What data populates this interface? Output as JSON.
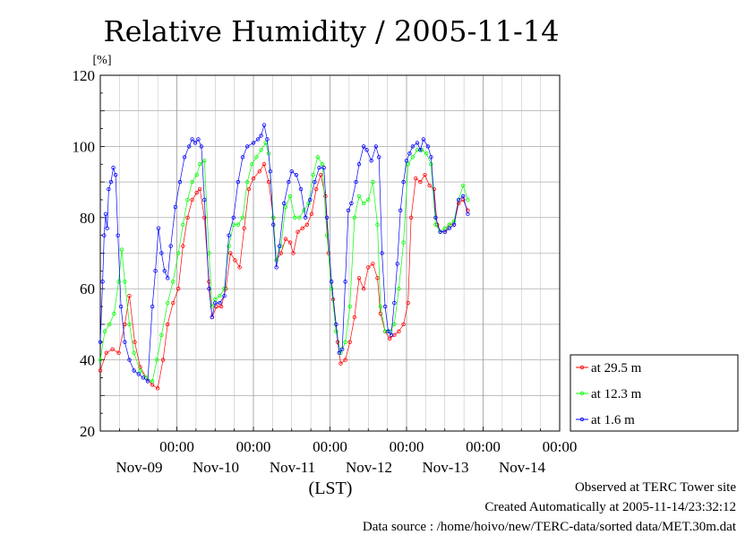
{
  "chart_data": {
    "type": "line",
    "title": "Relative Humidity / 2005-11-14",
    "ylabel": "[%]",
    "xlabel": "(LST)",
    "ylim": [
      20,
      120
    ],
    "yticks": [
      20,
      40,
      60,
      80,
      100,
      120
    ],
    "xlim_days": [
      -1,
      5
    ],
    "xticks": [
      {
        "top": "00:00",
        "bottom": "Nov-09"
      },
      {
        "top": "00:00",
        "bottom": "Nov-10"
      },
      {
        "top": "00:00",
        "bottom": "Nov-11"
      },
      {
        "top": "00:00",
        "bottom": "Nov-12"
      },
      {
        "top": "00:00",
        "bottom": "Nov-13"
      },
      {
        "top": "00:00",
        "bottom": "Nov-14"
      }
    ],
    "grid": true,
    "legend_position": "right",
    "series": [
      {
        "name": "at 29.5 m",
        "color": "#ff0000",
        "points": [
          [
            -1.0,
            37
          ],
          [
            -0.92,
            42
          ],
          [
            -0.84,
            43
          ],
          [
            -0.76,
            42
          ],
          [
            -0.68,
            50
          ],
          [
            -0.62,
            58
          ],
          [
            -0.55,
            45
          ],
          [
            -0.48,
            38
          ],
          [
            -0.4,
            35
          ],
          [
            -0.32,
            33
          ],
          [
            -0.25,
            32
          ],
          [
            -0.18,
            40
          ],
          [
            -0.12,
            50
          ],
          [
            -0.05,
            56
          ],
          [
            0.02,
            60
          ],
          [
            0.08,
            72
          ],
          [
            0.14,
            80
          ],
          [
            0.2,
            85
          ],
          [
            0.26,
            87
          ],
          [
            0.3,
            88
          ],
          [
            0.36,
            80
          ],
          [
            0.42,
            62
          ],
          [
            0.46,
            52
          ],
          [
            0.52,
            55
          ],
          [
            0.58,
            55
          ],
          [
            0.64,
            60
          ],
          [
            0.7,
            70
          ],
          [
            0.76,
            68
          ],
          [
            0.82,
            66
          ],
          [
            0.88,
            77
          ],
          [
            0.94,
            88
          ],
          [
            1.0,
            91
          ],
          [
            1.08,
            93
          ],
          [
            1.14,
            95
          ],
          [
            1.2,
            90
          ],
          [
            1.26,
            80
          ],
          [
            1.3,
            68
          ],
          [
            1.36,
            70
          ],
          [
            1.42,
            74
          ],
          [
            1.48,
            73
          ],
          [
            1.52,
            70
          ],
          [
            1.58,
            76
          ],
          [
            1.64,
            77
          ],
          [
            1.7,
            78
          ],
          [
            1.76,
            81
          ],
          [
            1.82,
            88
          ],
          [
            1.88,
            92
          ],
          [
            1.94,
            86
          ],
          [
            1.98,
            70
          ],
          [
            2.04,
            57
          ],
          [
            2.1,
            45
          ],
          [
            2.14,
            39
          ],
          [
            2.2,
            40
          ],
          [
            2.26,
            45
          ],
          [
            2.32,
            52
          ],
          [
            2.38,
            63
          ],
          [
            2.44,
            60
          ],
          [
            2.5,
            66
          ],
          [
            2.56,
            67
          ],
          [
            2.62,
            63
          ],
          [
            2.66,
            53
          ],
          [
            2.72,
            48
          ],
          [
            2.78,
            46
          ],
          [
            2.84,
            47
          ],
          [
            2.9,
            48
          ],
          [
            2.96,
            50
          ],
          [
            3.02,
            56
          ],
          [
            3.06,
            80
          ],
          [
            3.12,
            91
          ],
          [
            3.18,
            90
          ],
          [
            3.24,
            92
          ],
          [
            3.3,
            89
          ],
          [
            3.36,
            88
          ],
          [
            3.4,
            78
          ],
          [
            3.44,
            76
          ],
          [
            3.5,
            76
          ],
          [
            3.56,
            78
          ],
          [
            3.62,
            78
          ],
          [
            3.68,
            84
          ],
          [
            3.74,
            85
          ],
          [
            3.8,
            82
          ]
        ]
      },
      {
        "name": "at 12.3 m",
        "color": "#00ff00",
        "points": [
          [
            -1.0,
            40
          ],
          [
            -0.94,
            48
          ],
          [
            -0.88,
            50
          ],
          [
            -0.82,
            53
          ],
          [
            -0.76,
            62
          ],
          [
            -0.72,
            71
          ],
          [
            -0.68,
            62
          ],
          [
            -0.62,
            50
          ],
          [
            -0.56,
            42
          ],
          [
            -0.48,
            37
          ],
          [
            -0.4,
            35
          ],
          [
            -0.32,
            34
          ],
          [
            -0.26,
            40
          ],
          [
            -0.2,
            47
          ],
          [
            -0.12,
            56
          ],
          [
            -0.05,
            62
          ],
          [
            0.02,
            70
          ],
          [
            0.08,
            78
          ],
          [
            0.14,
            85
          ],
          [
            0.2,
            90
          ],
          [
            0.26,
            92
          ],
          [
            0.3,
            95
          ],
          [
            0.36,
            96
          ],
          [
            0.42,
            70
          ],
          [
            0.46,
            55
          ],
          [
            0.5,
            57
          ],
          [
            0.56,
            58
          ],
          [
            0.62,
            60
          ],
          [
            0.68,
            72
          ],
          [
            0.74,
            78
          ],
          [
            0.8,
            78
          ],
          [
            0.86,
            80
          ],
          [
            0.92,
            90
          ],
          [
            0.98,
            95
          ],
          [
            1.04,
            97
          ],
          [
            1.1,
            99
          ],
          [
            1.16,
            101
          ],
          [
            1.2,
            98
          ],
          [
            1.26,
            80
          ],
          [
            1.3,
            68
          ],
          [
            1.36,
            72
          ],
          [
            1.42,
            83
          ],
          [
            1.48,
            86
          ],
          [
            1.54,
            80
          ],
          [
            1.6,
            80
          ],
          [
            1.66,
            82
          ],
          [
            1.72,
            84
          ],
          [
            1.78,
            92
          ],
          [
            1.84,
            97
          ],
          [
            1.9,
            95
          ],
          [
            1.96,
            75
          ],
          [
            2.02,
            60
          ],
          [
            2.08,
            48
          ],
          [
            2.14,
            42
          ],
          [
            2.2,
            45
          ],
          [
            2.26,
            55
          ],
          [
            2.32,
            80
          ],
          [
            2.38,
            86
          ],
          [
            2.44,
            84
          ],
          [
            2.5,
            85
          ],
          [
            2.56,
            90
          ],
          [
            2.62,
            78
          ],
          [
            2.66,
            55
          ],
          [
            2.72,
            48
          ],
          [
            2.78,
            48
          ],
          [
            2.84,
            50
          ],
          [
            2.9,
            60
          ],
          [
            2.96,
            73
          ],
          [
            3.02,
            95
          ],
          [
            3.08,
            97
          ],
          [
            3.14,
            99
          ],
          [
            3.2,
            99
          ],
          [
            3.26,
            98
          ],
          [
            3.32,
            95
          ],
          [
            3.38,
            78
          ],
          [
            3.44,
            76
          ],
          [
            3.5,
            77
          ],
          [
            3.56,
            78
          ],
          [
            3.62,
            79
          ],
          [
            3.68,
            85
          ],
          [
            3.74,
            89
          ],
          [
            3.8,
            85
          ]
        ]
      },
      {
        "name": "at 1.6 m",
        "color": "#0000ff",
        "points": [
          [
            -1.0,
            45
          ],
          [
            -0.97,
            62
          ],
          [
            -0.95,
            75
          ],
          [
            -0.93,
            81
          ],
          [
            -0.91,
            77
          ],
          [
            -0.89,
            88
          ],
          [
            -0.86,
            90
          ],
          [
            -0.83,
            94
          ],
          [
            -0.8,
            92
          ],
          [
            -0.77,
            75
          ],
          [
            -0.73,
            55
          ],
          [
            -0.68,
            45
          ],
          [
            -0.62,
            40
          ],
          [
            -0.56,
            37
          ],
          [
            -0.5,
            36
          ],
          [
            -0.44,
            35
          ],
          [
            -0.38,
            34
          ],
          [
            -0.32,
            55
          ],
          [
            -0.28,
            65
          ],
          [
            -0.24,
            77
          ],
          [
            -0.2,
            70
          ],
          [
            -0.16,
            65
          ],
          [
            -0.12,
            63
          ],
          [
            -0.08,
            72
          ],
          [
            -0.02,
            83
          ],
          [
            0.04,
            90
          ],
          [
            0.1,
            97
          ],
          [
            0.16,
            100
          ],
          [
            0.2,
            102
          ],
          [
            0.24,
            101
          ],
          [
            0.28,
            102
          ],
          [
            0.32,
            100
          ],
          [
            0.36,
            85
          ],
          [
            0.42,
            60
          ],
          [
            0.46,
            52
          ],
          [
            0.5,
            56
          ],
          [
            0.56,
            56
          ],
          [
            0.62,
            58
          ],
          [
            0.68,
            75
          ],
          [
            0.74,
            80
          ],
          [
            0.8,
            90
          ],
          [
            0.86,
            97
          ],
          [
            0.92,
            100
          ],
          [
            1.0,
            101
          ],
          [
            1.06,
            102
          ],
          [
            1.1,
            103
          ],
          [
            1.14,
            106
          ],
          [
            1.18,
            102
          ],
          [
            1.22,
            93
          ],
          [
            1.26,
            78
          ],
          [
            1.3,
            66
          ],
          [
            1.34,
            72
          ],
          [
            1.4,
            84
          ],
          [
            1.46,
            90
          ],
          [
            1.5,
            93
          ],
          [
            1.56,
            92
          ],
          [
            1.62,
            88
          ],
          [
            1.68,
            80
          ],
          [
            1.74,
            85
          ],
          [
            1.8,
            90
          ],
          [
            1.86,
            94
          ],
          [
            1.92,
            94
          ],
          [
            1.96,
            80
          ],
          [
            2.02,
            62
          ],
          [
            2.08,
            50
          ],
          [
            2.12,
            42
          ],
          [
            2.16,
            43
          ],
          [
            2.2,
            62
          ],
          [
            2.24,
            82
          ],
          [
            2.28,
            84
          ],
          [
            2.34,
            90
          ],
          [
            2.38,
            95
          ],
          [
            2.44,
            100
          ],
          [
            2.48,
            99
          ],
          [
            2.54,
            96
          ],
          [
            2.6,
            100
          ],
          [
            2.64,
            97
          ],
          [
            2.68,
            70
          ],
          [
            2.72,
            55
          ],
          [
            2.76,
            48
          ],
          [
            2.8,
            47
          ],
          [
            2.84,
            56
          ],
          [
            2.88,
            67
          ],
          [
            2.92,
            82
          ],
          [
            2.96,
            90
          ],
          [
            3.0,
            96
          ],
          [
            3.04,
            98
          ],
          [
            3.08,
            100
          ],
          [
            3.14,
            101
          ],
          [
            3.18,
            99
          ],
          [
            3.22,
            102
          ],
          [
            3.28,
            100
          ],
          [
            3.32,
            97
          ],
          [
            3.38,
            80
          ],
          [
            3.44,
            76
          ],
          [
            3.5,
            76
          ],
          [
            3.56,
            77
          ],
          [
            3.62,
            78
          ],
          [
            3.68,
            85
          ],
          [
            3.74,
            86
          ],
          [
            3.8,
            81
          ]
        ]
      }
    ]
  },
  "footer": {
    "line1": "Observed at TERC Tower site",
    "line2": "Created Automatically at 2005-11-14/23:32:12",
    "line3": "Data source : /home/hoivo/new/TERC-data/sorted  data/MET.30m.dat"
  }
}
